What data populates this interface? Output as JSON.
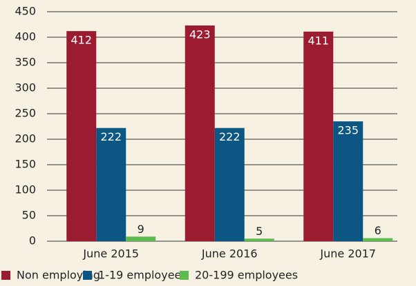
{
  "chart_data": {
    "type": "bar",
    "categories": [
      "June 2015",
      "June 2016",
      "June 2017"
    ],
    "series": [
      {
        "name": "Non employing",
        "color": "#9b1c31",
        "values": [
          412,
          423,
          411
        ]
      },
      {
        "name": "1-19 employees",
        "color": "#0b5683",
        "values": [
          222,
          222,
          235
        ]
      },
      {
        "name": "20-199 employees",
        "color": "#5dbb4f",
        "values": [
          9,
          5,
          6
        ]
      }
    ],
    "ylim": [
      0,
      450
    ],
    "yticks": [
      0,
      50,
      100,
      150,
      200,
      250,
      300,
      350,
      400,
      450
    ],
    "grid": true,
    "legend": "bottom"
  }
}
